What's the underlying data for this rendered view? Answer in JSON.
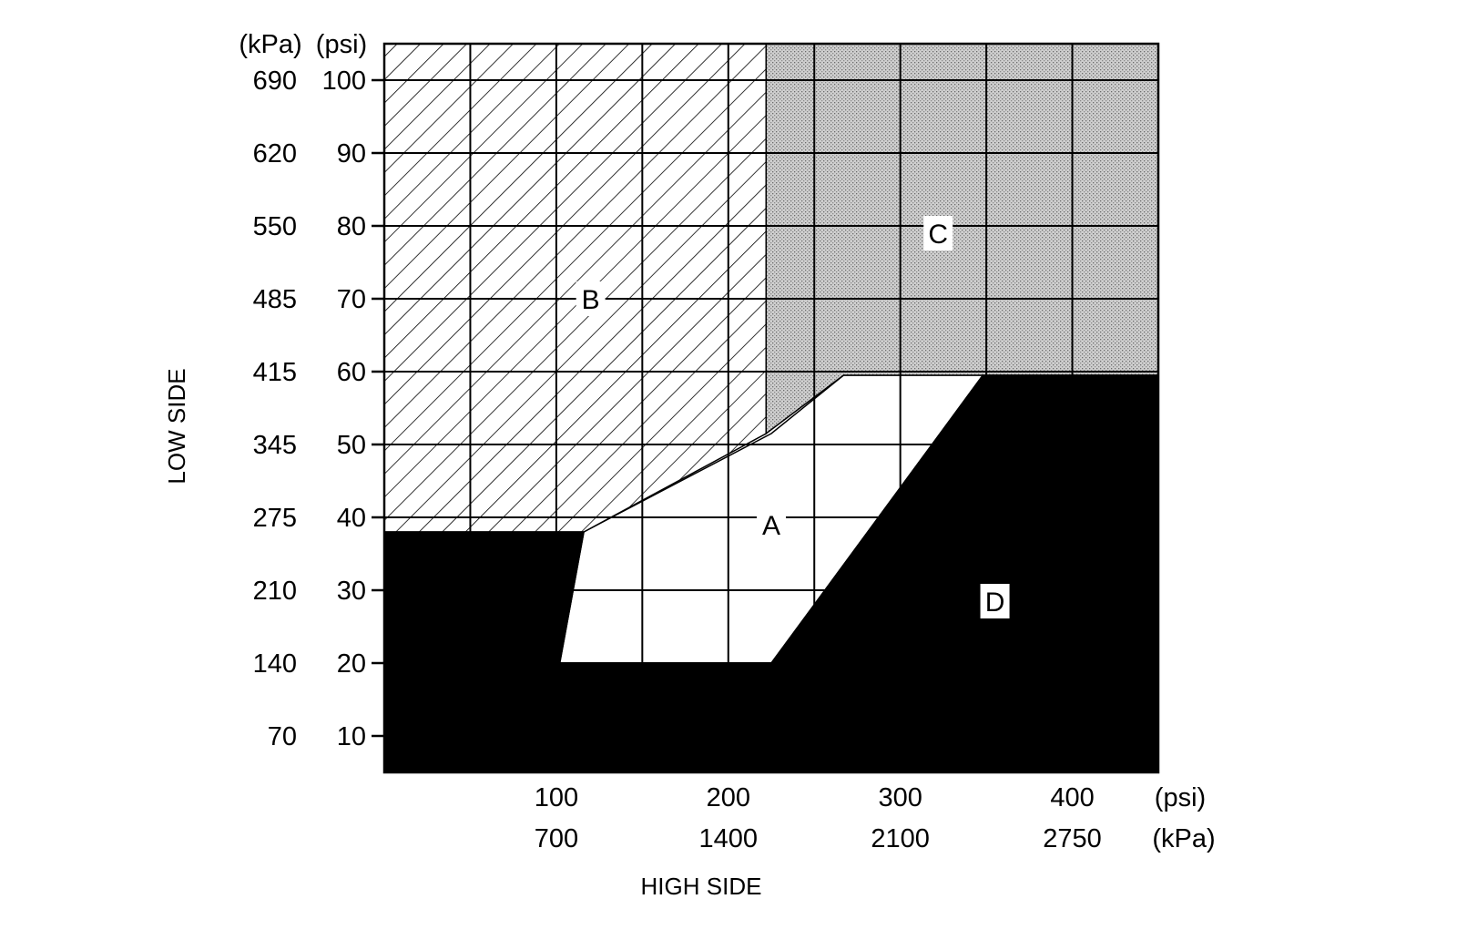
{
  "chart_data": {
    "type": "area",
    "title": "",
    "x_axis": {
      "label": "HIGH SIDE",
      "range_psi": [
        0,
        450
      ],
      "primary_unit": "(psi)",
      "secondary_unit": "(kPa)",
      "ticks": [
        {
          "psi": 100,
          "label": "100",
          "kpa_label": "700"
        },
        {
          "psi": 200,
          "label": "200",
          "kpa_label": "1400"
        },
        {
          "psi": 300,
          "label": "300",
          "kpa_label": "2100"
        },
        {
          "psi": 400,
          "label": "400",
          "kpa_label": "2750"
        }
      ],
      "grid_step_psi": 50
    },
    "y_axis": {
      "label": "LOW SIDE",
      "range_psi": [
        5,
        105
      ],
      "primary_unit": "(psi)",
      "secondary_unit": "(kPa)",
      "ticks": [
        {
          "psi": 100,
          "label": "100",
          "kpa_label": "690"
        },
        {
          "psi": 90,
          "label": "90",
          "kpa_label": "620"
        },
        {
          "psi": 80,
          "label": "80",
          "kpa_label": "550"
        },
        {
          "psi": 70,
          "label": "70",
          "kpa_label": "485"
        },
        {
          "psi": 60,
          "label": "60",
          "kpa_label": "415"
        },
        {
          "psi": 50,
          "label": "50",
          "kpa_label": "345"
        },
        {
          "psi": 40,
          "label": "40",
          "kpa_label": "275"
        },
        {
          "psi": 30,
          "label": "30",
          "kpa_label": "210"
        },
        {
          "psi": 20,
          "label": "20",
          "kpa_label": "140"
        },
        {
          "psi": 10,
          "label": "10",
          "kpa_label": "70"
        }
      ],
      "grid_step_psi": 10
    },
    "grid": true,
    "regions": [
      {
        "name": "A",
        "fill": "white",
        "label_at": [
          225,
          39
        ],
        "polygon": [
          [
            102,
            20
          ],
          [
            225,
            20
          ],
          [
            348,
            59.5
          ],
          [
            267,
            59.5
          ],
          [
            225,
            51.5
          ],
          [
            116,
            38
          ]
        ]
      },
      {
        "name": "B",
        "fill": "hatched",
        "label_at": [
          120,
          70
        ],
        "polygon": [
          [
            0,
            105
          ],
          [
            222,
            105
          ],
          [
            222,
            51.5
          ],
          [
            116,
            38
          ],
          [
            0,
            38
          ]
        ]
      },
      {
        "name": "C",
        "fill": "dotted",
        "label_at": [
          322,
          79
        ],
        "polygon": [
          [
            222,
            105
          ],
          [
            450,
            105
          ],
          [
            450,
            59.5
          ],
          [
            267,
            59.5
          ],
          [
            222,
            51.5
          ]
        ]
      },
      {
        "name": "D",
        "fill": "black",
        "label_at": [
          355,
          28.5
        ],
        "polygon": [
          [
            0,
            5
          ],
          [
            450,
            5
          ],
          [
            450,
            59.5
          ],
          [
            348,
            59.5
          ],
          [
            225,
            20
          ],
          [
            102,
            20
          ],
          [
            116,
            38
          ],
          [
            0,
            38
          ]
        ]
      }
    ]
  }
}
